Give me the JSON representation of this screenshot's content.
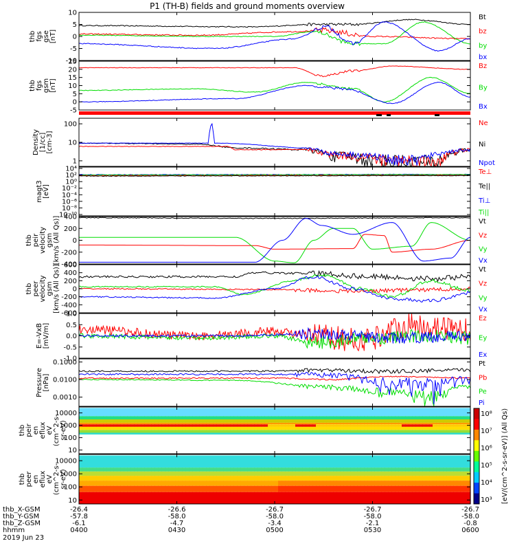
{
  "title": "P1 (TH-B) fields and ground moments overview",
  "colors": {
    "black": "#000000",
    "red": "#ff0000",
    "green": "#00dd00",
    "blue": "#0000ff"
  },
  "chart_data": [
    {
      "type": "line",
      "ylabel": [
        "thb",
        "fgs",
        "gse",
        "[nT]"
      ],
      "ylim": [
        -10,
        10
      ],
      "yticks": [
        "10",
        "5",
        "0",
        "-5",
        "-10"
      ],
      "legend": [
        {
          "name": "Bt",
          "color": "black"
        },
        {
          "name": "bz",
          "color": "red"
        },
        {
          "name": "by",
          "color": "green"
        },
        {
          "name": "bx",
          "color": "blue"
        }
      ]
    },
    {
      "type": "line",
      "ylabel": [
        "thb",
        "fgs",
        "gsm",
        "[nT]"
      ],
      "ylim": [
        -5,
        25
      ],
      "yticks": [
        "25",
        "20",
        "15",
        "10",
        "5",
        "0",
        "-5"
      ],
      "legend": [
        {
          "name": "Bz",
          "color": "red"
        },
        {
          "name": "By",
          "color": "green"
        },
        {
          "name": "Bx",
          "color": "blue"
        }
      ]
    },
    {
      "type": "line",
      "ylabel": [
        "Density",
        "[1/cc]",
        "[cm-3]"
      ],
      "ylim": [
        0.5,
        200
      ],
      "yticks": [
        "100",
        "10",
        "1"
      ],
      "scale": "log",
      "legend": [
        {
          "name": "Ne",
          "color": "red"
        },
        {
          "name": "Ni",
          "color": "black"
        },
        {
          "name": "Npot",
          "color": "blue"
        }
      ]
    },
    {
      "type": "line",
      "ylabel": [
        "magt3",
        "[eV]"
      ],
      "yticks": [
        "10⁴",
        "10²",
        "10⁰",
        "10⁻²",
        "10⁻⁴",
        "10⁻⁶",
        "10⁻⁸",
        "10⁻¹⁰"
      ],
      "scale": "log",
      "legend": [
        {
          "name": "Te⊥",
          "color": "red"
        },
        {
          "name": "Te||",
          "color": "black"
        },
        {
          "name": "Ti⊥",
          "color": "blue"
        },
        {
          "name": "Ti||",
          "color": "green"
        }
      ]
    },
    {
      "type": "line",
      "ylabel": [
        "thb",
        "peir",
        "velocity",
        "gsm",
        "[km/s (All Qs)]"
      ],
      "ylim": [
        -400,
        400
      ],
      "yticks": [
        "400",
        "200",
        "0",
        "-200",
        "-400"
      ],
      "legend": [
        {
          "name": "Vt",
          "color": "black"
        },
        {
          "name": "Vz",
          "color": "red"
        },
        {
          "name": "Vy",
          "color": "green"
        },
        {
          "name": "Vx",
          "color": "blue"
        }
      ]
    },
    {
      "type": "line",
      "ylabel": [
        "thb",
        "peer",
        "velocity",
        "gsm",
        "[km/s (All Qs)]"
      ],
      "ylim": [
        -600,
        600
      ],
      "yticks": [
        "600",
        "400",
        "200",
        "0",
        "-200",
        "-400",
        "-600"
      ],
      "legend": [
        {
          "name": "Vt",
          "color": "black"
        },
        {
          "name": "Vz",
          "color": "red"
        },
        {
          "name": "Vy",
          "color": "green"
        },
        {
          "name": "Vx",
          "color": "blue"
        }
      ]
    },
    {
      "type": "line",
      "ylabel": [
        "E=-VxB",
        "[mV/m]"
      ],
      "ylim": [
        -1.0,
        1.0
      ],
      "yticks": [
        "1.0",
        "0.5",
        "0.0",
        "-0.5",
        "-1.0"
      ],
      "legend": [
        {
          "name": "Ez",
          "color": "red"
        },
        {
          "name": "Ey",
          "color": "green"
        },
        {
          "name": "Ex",
          "color": "blue"
        }
      ]
    },
    {
      "type": "line",
      "ylabel": [
        "Pressure",
        "[nPa]"
      ],
      "yticks": [
        "0.1000",
        "0.0100",
        "0.0010"
      ],
      "scale": "log",
      "legend": [
        {
          "name": "Pt",
          "color": "black"
        },
        {
          "name": "Pb",
          "color": "red"
        },
        {
          "name": "Pe",
          "color": "green"
        },
        {
          "name": "Pi",
          "color": "blue"
        }
      ]
    },
    {
      "type": "heatmap",
      "ylabel": [
        "thb",
        "peir",
        "en",
        "eflux",
        "eV",
        "(cm^2-s-",
        "sr-eV)"
      ],
      "yticks": [
        "10000",
        "1000",
        "100",
        "10"
      ],
      "scale": "log"
    },
    {
      "type": "heatmap",
      "ylabel": [
        "thb",
        "peer",
        "en",
        "eflux",
        "eV",
        "(cm^2-s-",
        "sr-eV)"
      ],
      "yticks": [
        "10000",
        "1000",
        "100",
        "10"
      ],
      "scale": "log"
    }
  ],
  "colorbar": {
    "label": "[eV/(cm^2-s-sr-eV)] (All Qs)",
    "ticks": [
      "10⁸",
      "10⁷",
      "10⁶",
      "10⁵",
      "10⁴",
      "10³"
    ]
  },
  "xaxis": {
    "rows": [
      {
        "label": "thb_X-GSM",
        "values": [
          "-26.4",
          "-26.6",
          "-26.7",
          "-26.7",
          "-26.7"
        ]
      },
      {
        "label": "thb_Y-GSM",
        "values": [
          "-57.8",
          "-58.0",
          "-58.0",
          "-58.0",
          "-58.0"
        ]
      },
      {
        "label": "thb_Z-GSM",
        "values": [
          "-6.1",
          "-4.7",
          "-3.4",
          "-2.1",
          "-0.8"
        ]
      },
      {
        "label": "hhmm",
        "values": [
          "0400",
          "0430",
          "0500",
          "0530",
          "0600"
        ]
      }
    ],
    "date": "2019 Jun 23"
  }
}
